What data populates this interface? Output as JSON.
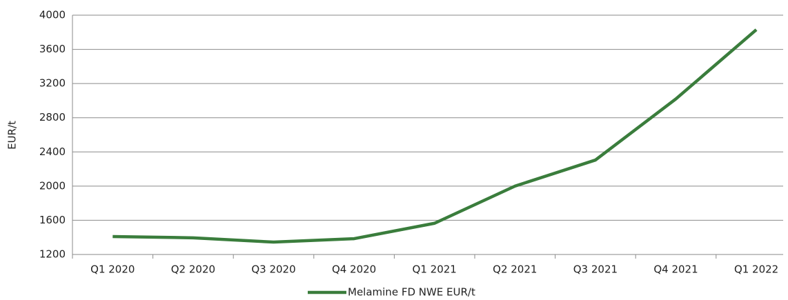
{
  "chart_data": {
    "type": "line",
    "y_label": "EUR/t",
    "categories": [
      "Q1 2020",
      "Q2 2020",
      "Q3 2020",
      "Q4 2020",
      "Q1 2021",
      "Q2 2021",
      "Q3 2021",
      "Q4 2021",
      "Q1 2022"
    ],
    "series": [
      {
        "name": "Melamine FD NWE EUR/t",
        "color": "#3a7d3c",
        "values": [
          1410,
          1395,
          1345,
          1385,
          1565,
          2000,
          2305,
          3020,
          3830
        ]
      }
    ],
    "ylim": [
      1200,
      4000
    ],
    "yticks": [
      1200,
      1600,
      2000,
      2400,
      2800,
      3200,
      3600,
      4000
    ],
    "grid": true,
    "legend": "bottom"
  }
}
